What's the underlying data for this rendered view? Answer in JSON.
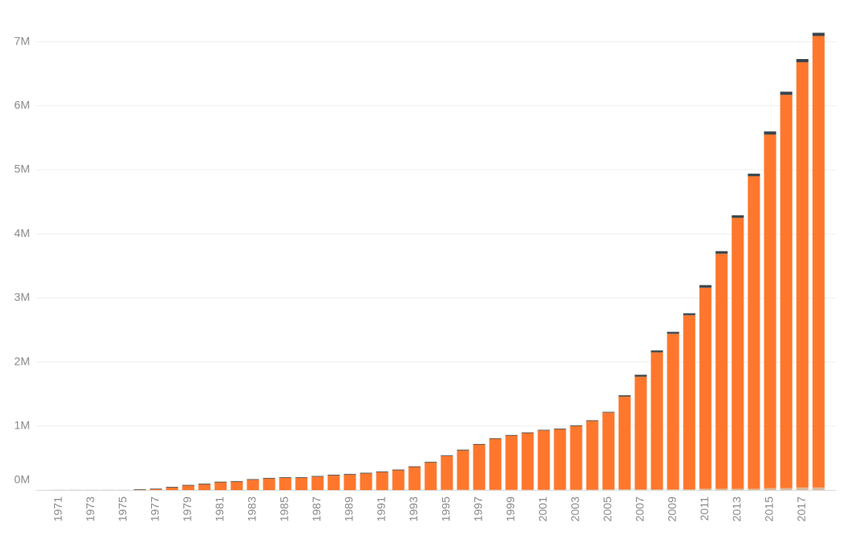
{
  "chart_data": {
    "type": "stacked_bar",
    "categories": [
      "1971",
      null,
      "1973",
      null,
      "1975",
      null,
      "1977",
      null,
      "1979",
      null,
      "1981",
      null,
      "1983",
      null,
      "1985",
      null,
      "1987",
      null,
      "1989",
      null,
      "1991",
      null,
      "1993",
      null,
      "1995",
      null,
      "1997",
      null,
      "1999",
      null,
      "2001",
      null,
      "2003",
      null,
      "2005",
      null,
      "2007",
      null,
      "2009",
      null,
      "2011",
      null,
      "2013",
      null,
      "2015",
      null,
      "2017",
      null
    ],
    "series": [
      {
        "color": "#d9b99b",
        "values": [
          0,
          0,
          0,
          0,
          0,
          0,
          0,
          0,
          0,
          0,
          0,
          0,
          0,
          0,
          0,
          0,
          0,
          0,
          0,
          0,
          0,
          0,
          0,
          0,
          5000,
          5000,
          5000,
          5000,
          5000,
          5000,
          5000,
          5000,
          5000,
          5000,
          10000,
          10000,
          10000,
          10000,
          10000,
          10000,
          20000,
          20000,
          20000,
          20000,
          30000,
          30000,
          40000,
          40000
        ]
      },
      {
        "color": "#fe772d",
        "values": [
          0,
          0,
          0,
          0,
          0,
          5000,
          15000,
          40000,
          70000,
          90000,
          120000,
          130000,
          160000,
          180000,
          190000,
          190000,
          210000,
          230000,
          240000,
          260000,
          280000,
          310000,
          360000,
          430000,
          525000,
          615000,
          705000,
          795000,
          845000,
          885000,
          925000,
          945000,
          995000,
          1075000,
          1200000,
          1450000,
          1760000,
          2140000,
          2430000,
          2720000,
          3140000,
          3670000,
          4230000,
          4880000,
          5520000,
          6140000,
          6640000,
          7050000
        ]
      },
      {
        "color": "#3a4448",
        "values": [
          1000,
          1000,
          1000,
          1000,
          1000,
          8000,
          8000,
          10000,
          10000,
          10000,
          10000,
          10000,
          10000,
          10000,
          10000,
          10000,
          10000,
          10000,
          10000,
          10000,
          10000,
          10000,
          10000,
          10000,
          10000,
          10000,
          10000,
          10000,
          10000,
          10000,
          10000,
          10000,
          10000,
          10000,
          10000,
          20000,
          30000,
          30000,
          30000,
          30000,
          40000,
          40000,
          40000,
          40000,
          50000,
          50000,
          50000,
          50000
        ]
      }
    ],
    "ylim": [
      0,
      7500000
    ],
    "yticks": [
      {
        "value": 0,
        "label": "0M"
      },
      {
        "value": 1000000,
        "label": "1M"
      },
      {
        "value": 2000000,
        "label": "2M"
      },
      {
        "value": 3000000,
        "label": "3M"
      },
      {
        "value": 4000000,
        "label": "4M"
      },
      {
        "value": 5000000,
        "label": "5M"
      },
      {
        "value": 6000000,
        "label": "6M"
      },
      {
        "value": 7000000,
        "label": "7M"
      }
    ],
    "grid": true
  }
}
